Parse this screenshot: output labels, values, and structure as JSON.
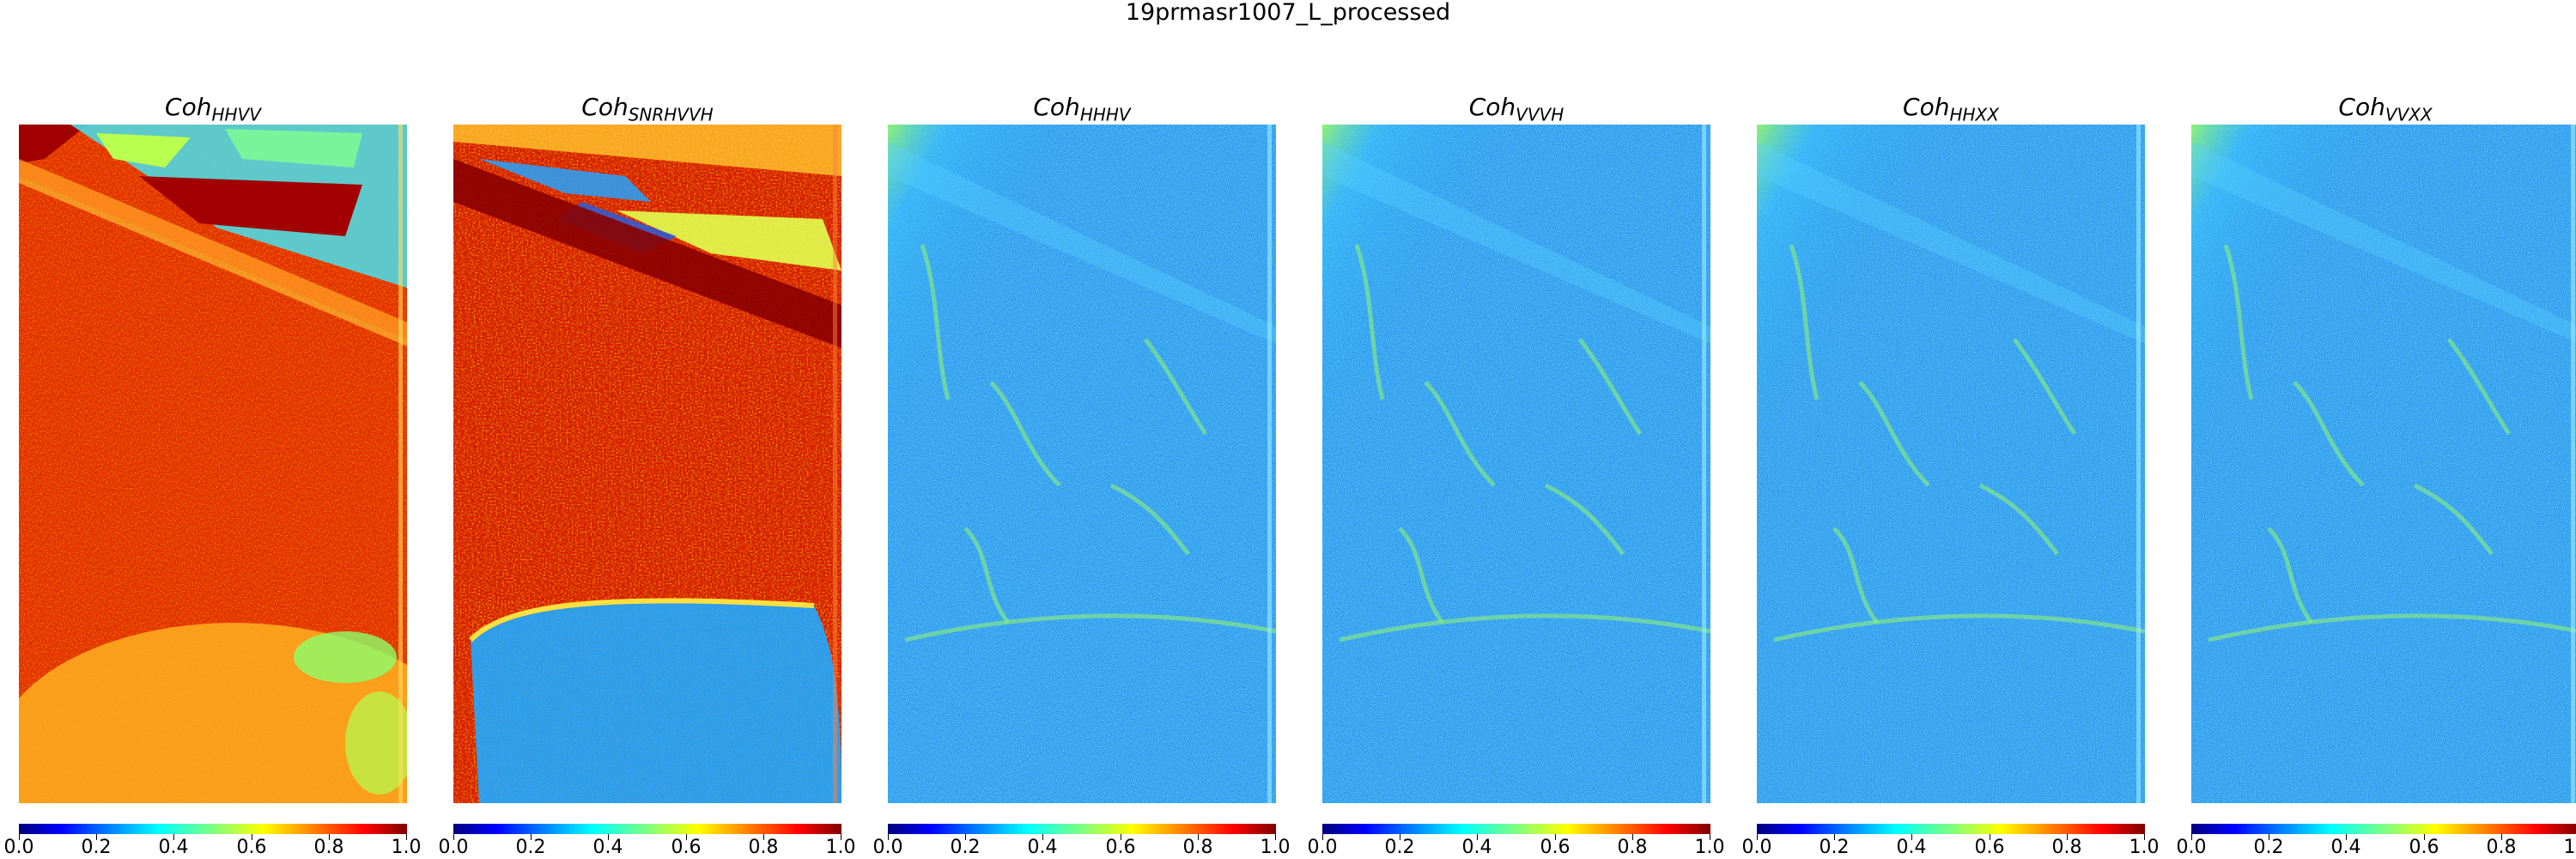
{
  "title": "19prmasr1007_L_processed",
  "colorbar_ticks": [
    "0.0",
    "0.2",
    "0.4",
    "0.6",
    "0.8",
    "1.0"
  ],
  "panels": [
    {
      "label_main": "Coh",
      "label_sub": "HHVV",
      "palette": "high"
    },
    {
      "label_main": "Coh",
      "label_sub": "SNRHVVH",
      "palette": "mixed"
    },
    {
      "label_main": "Coh",
      "label_sub": "HHHV",
      "palette": "low"
    },
    {
      "label_main": "Coh",
      "label_sub": "VVVH",
      "palette": "low"
    },
    {
      "label_main": "Coh",
      "label_sub": "HHXX",
      "palette": "low"
    },
    {
      "label_main": "Coh",
      "label_sub": "VVXX",
      "palette": "low"
    }
  ],
  "colormap": "jet"
}
